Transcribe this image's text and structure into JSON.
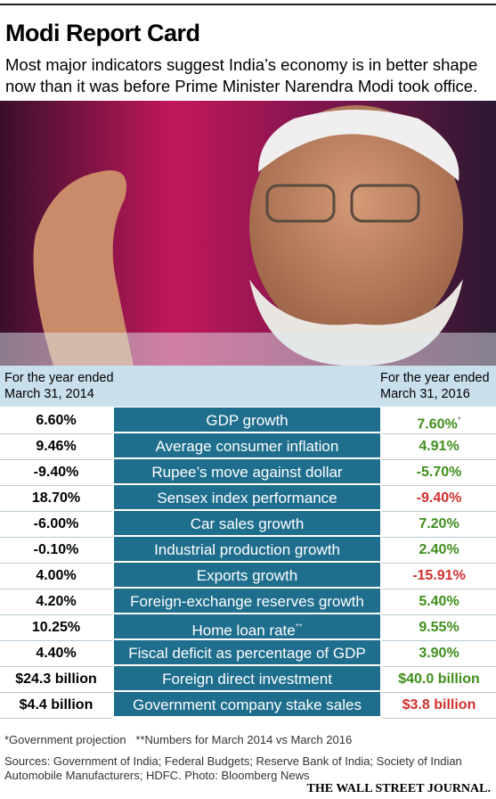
{
  "header": {
    "title": "Modi Report Card",
    "subtitle_lines": [
      "Most major indicators suggest India’s economy is in better shape",
      "now than it was before Prime Minister Narendra Modi took office."
    ]
  },
  "table": {
    "left_header": [
      "For the year ended",
      "March 31, 2014"
    ],
    "right_header": [
      "For the year ended",
      "March 31, 2016"
    ],
    "rows": [
      {
        "left": "6.60%",
        "label": "GDP growth",
        "right": "7.60%",
        "right_note": "*",
        "right_color": "#3f8f1c"
      },
      {
        "left": "9.46%",
        "label": "Average consumer inflation",
        "right": "4.91%",
        "right_color": "#3f8f1c"
      },
      {
        "left": "-9.40%",
        "label": "Rupee’s move against dollar",
        "right": "-5.70%",
        "right_color": "#3f8f1c"
      },
      {
        "left": "18.70%",
        "label": "Sensex index performance",
        "right": "-9.40%",
        "right_color": "#d0312d"
      },
      {
        "left": "-6.00%",
        "label": "Car sales growth",
        "right": "7.20%",
        "right_color": "#3f8f1c"
      },
      {
        "left": "-0.10%",
        "label": "Industrial production growth",
        "right": "2.40%",
        "right_color": "#3f8f1c"
      },
      {
        "left": "4.00%",
        "label": "Exports growth",
        "right": "-15.91%",
        "right_color": "#d0312d"
      },
      {
        "left": "4.20%",
        "label": "Foreign-exchange reserves growth",
        "right": "5.40%",
        "right_color": "#3f8f1c"
      },
      {
        "left": "10.25%",
        "label": "Home loan rate",
        "label_note": "**",
        "right": "9.55%",
        "right_color": "#3f8f1c"
      },
      {
        "left": "4.40%",
        "label": "Fiscal deficit as percentage of GDP",
        "right": "3.90%",
        "right_color": "#3f8f1c"
      },
      {
        "left": "$24.3 billion",
        "label": "Foreign direct investment",
        "right": "$40.0 billion",
        "right_color": "#3f8f1c"
      },
      {
        "left": "$4.4 billion",
        "label": "Government company stake sales",
        "right": "$3.8 billion",
        "right_color": "#d0312d"
      }
    ]
  },
  "footer": {
    "notes": [
      "*Government projection",
      "**Numbers for March 2014 vs March 2016"
    ],
    "source_lines": [
      "Sources: Government of India; Federal Budgets; Reserve Bank of India; Society of Indian",
      "Automobile Manufacturers; HDFC.  Photo: Bloomberg News"
    ],
    "brand": "THE WALL STREET JOURNAL."
  }
}
